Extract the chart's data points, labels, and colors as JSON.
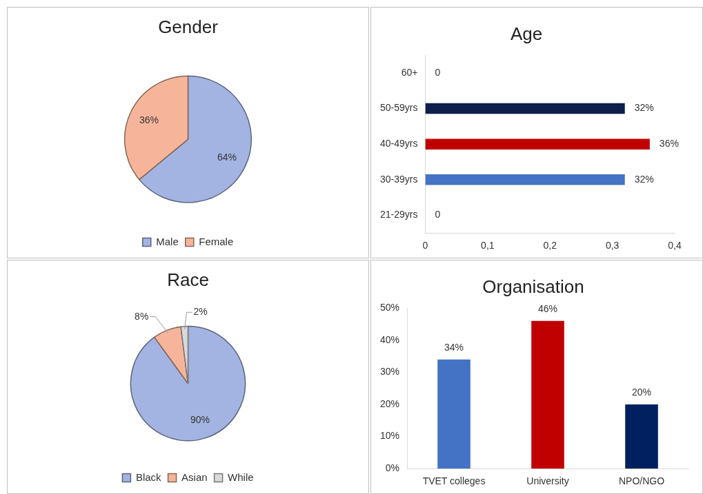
{
  "chart_data": [
    {
      "type": "pie",
      "title": "Gender",
      "categories": [
        "Male",
        "Female"
      ],
      "values": [
        64,
        36
      ],
      "colors": [
        "#a3b4e2",
        "#f6b59a"
      ],
      "value_labels": [
        "64%",
        "36%"
      ],
      "legend": "bottom"
    },
    {
      "type": "bar",
      "title": "Age",
      "orientation": "horizontal",
      "categories": [
        "60+",
        "50-59yrs",
        "40-49yrs",
        "30-39yrs",
        "21-29yrs"
      ],
      "values": [
        0,
        0.32,
        0.36,
        0.32,
        0
      ],
      "colors": [
        "#1f3864",
        "#0d1f4a",
        "#c00000",
        "#4472c4",
        "#4472c4"
      ],
      "value_labels": [
        "0",
        "32%",
        "36%",
        "32%",
        "0"
      ],
      "xlim": [
        0,
        0.4
      ],
      "xticks": [
        0,
        {
          "value": 0.1,
          "label": "0,1"
        },
        {
          "value": 0.2,
          "label": "0,2"
        },
        {
          "value": 0.3,
          "label": "0,3"
        },
        {
          "value": 0.4,
          "label": "0,4"
        }
      ],
      "grid": false,
      "legend": false
    },
    {
      "type": "pie",
      "title": "Race",
      "categories": [
        "Black",
        "Asian",
        "While"
      ],
      "values": [
        90,
        8,
        2
      ],
      "colors": [
        "#a3b4e2",
        "#f6b59a",
        "#d9d9d9"
      ],
      "value_labels": [
        "90%",
        "8%",
        "2%"
      ],
      "legend": "bottom"
    },
    {
      "type": "bar",
      "title": "Organisation",
      "categories": [
        "TVET colleges",
        "University",
        "NPO/NGO"
      ],
      "values": [
        34,
        46,
        20
      ],
      "colors": [
        "#4472c4",
        "#c00000",
        "#002060"
      ],
      "value_labels": [
        "34%",
        "46%",
        "20%"
      ],
      "ylim": [
        0,
        50
      ],
      "yticks": [
        {
          "value": 0,
          "label": "0%"
        },
        {
          "value": 10,
          "label": "10%"
        },
        {
          "value": 20,
          "label": "20%"
        },
        {
          "value": 30,
          "label": "30%"
        },
        {
          "value": 40,
          "label": "40%"
        },
        {
          "value": 50,
          "label": "50%"
        }
      ],
      "grid": false,
      "legend": false
    }
  ]
}
